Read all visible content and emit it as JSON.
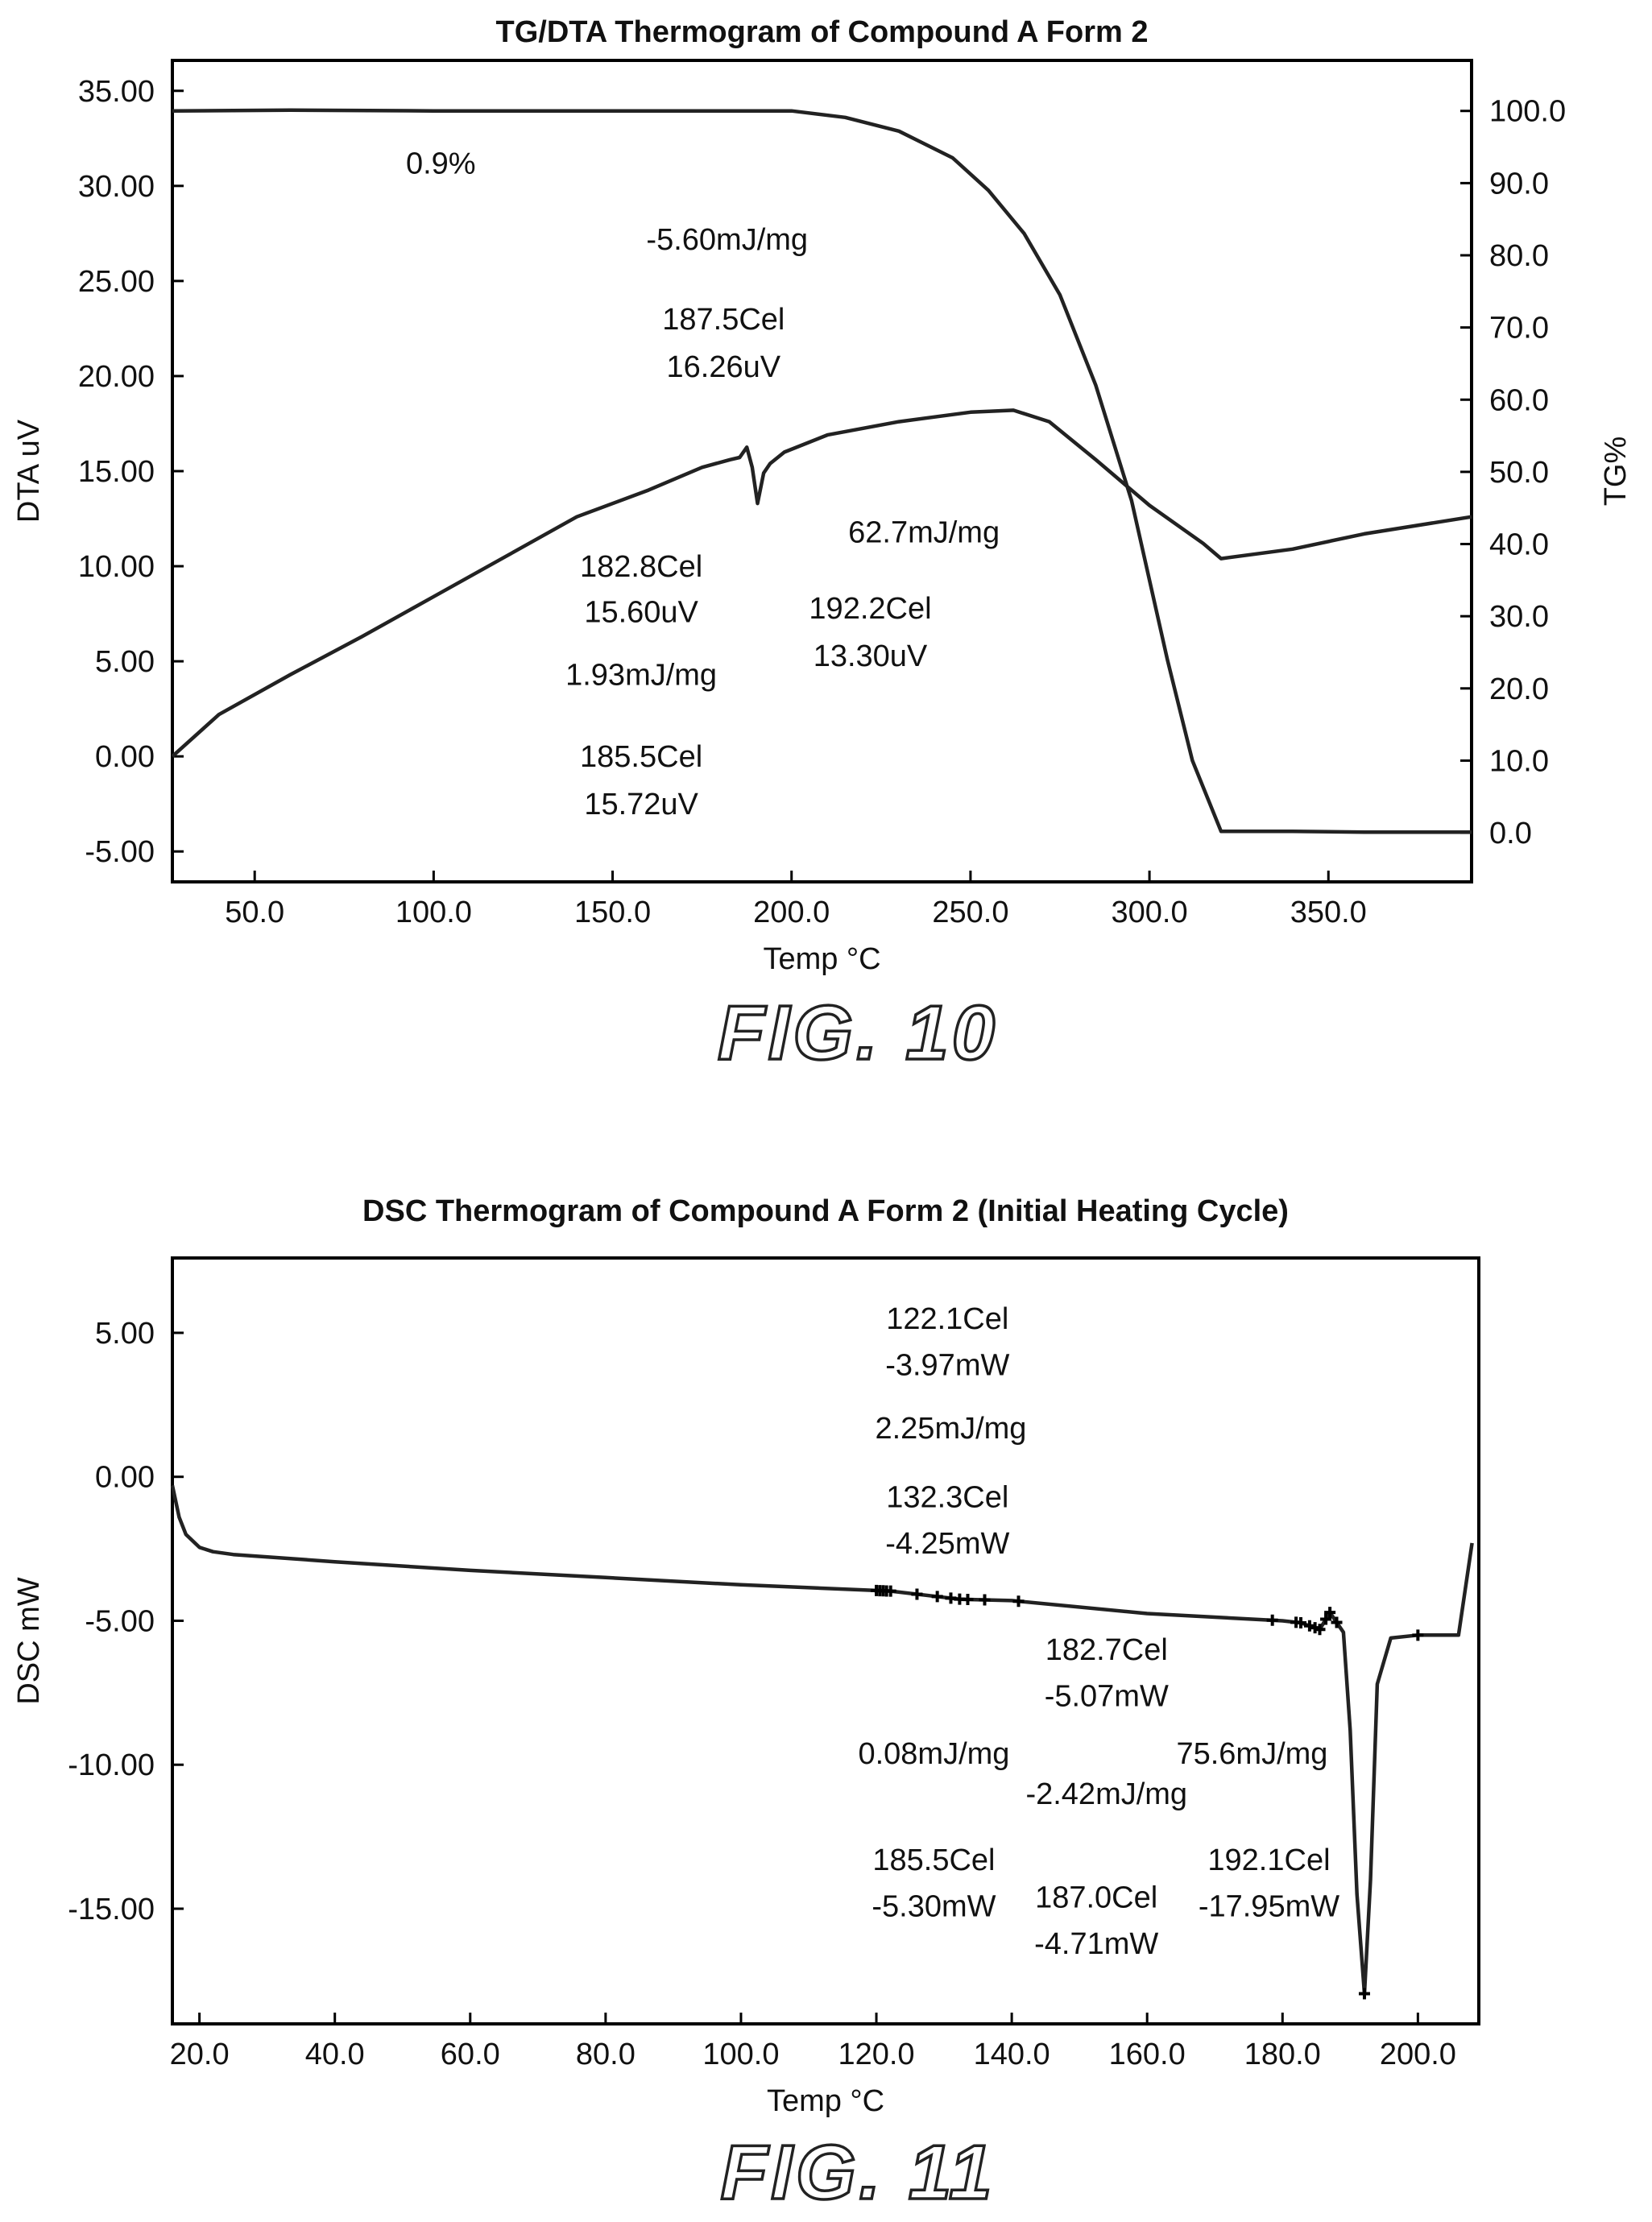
{
  "chart_data": [
    {
      "type": "line",
      "title": "TG/DTA Thermogram of Compound A Form 2",
      "xlabel": "Temp °C",
      "ylabel": "DTA uV",
      "y2label": "TG%",
      "figure_label": "FIG. 10",
      "xlim": [
        27,
        390
      ],
      "ylim": [
        -6.6,
        36.6
      ],
      "y2lim": [
        -6.8,
        107.0
      ],
      "x_ticks": [
        "50.0",
        "100.0",
        "150.0",
        "200.0",
        "250.0",
        "300.0",
        "350.0"
      ],
      "y_ticks": [
        "35.00",
        "30.00",
        "25.00",
        "20.00",
        "15.00",
        "10.00",
        "5.00",
        "0.00",
        "-5.00"
      ],
      "y2_ticks": [
        "100.0",
        "90.0",
        "80.0",
        "70.0",
        "60.0",
        "50.0",
        "40.0",
        "30.0",
        "20.0",
        "10.0",
        "0.0"
      ],
      "grid": false,
      "series": [
        {
          "axis": "left",
          "x": [
            27,
            40,
            60,
            80,
            100,
            120,
            140,
            160,
            175,
            182.8,
            185.5,
            187.5,
            189,
            190.5,
            192.2,
            194,
            198,
            210,
            230,
            250,
            262,
            272,
            285,
            300,
            315,
            320,
            340,
            360,
            390
          ],
          "y": [
            0.0,
            2.2,
            4.3,
            6.3,
            8.4,
            10.5,
            12.6,
            14.0,
            15.2,
            15.6,
            15.72,
            16.26,
            15.2,
            13.3,
            14.9,
            15.4,
            16.0,
            16.9,
            17.6,
            18.1,
            18.2,
            17.6,
            15.6,
            13.2,
            11.2,
            10.4,
            10.9,
            11.7,
            12.6
          ]
        },
        {
          "axis": "right",
          "x": [
            27,
            60,
            100,
            150,
            200,
            215,
            230,
            245,
            255,
            265,
            275,
            285,
            295,
            305,
            312,
            320,
            340,
            360,
            390
          ],
          "y": [
            100.0,
            100.1,
            100.0,
            100.0,
            100.0,
            99.1,
            97.2,
            93.5,
            89.0,
            83.0,
            74.5,
            62.0,
            46.0,
            24.0,
            10.0,
            0.2,
            0.2,
            0.1,
            0.1
          ]
        }
      ],
      "annotations": [
        {
          "text": "0.9%",
          "x": 102,
          "y": 31.2
        },
        {
          "text": "-5.60mJ/mg",
          "x": 182,
          "y": 27.2
        },
        {
          "text": "187.5Cel",
          "x": 181,
          "y": 23.0
        },
        {
          "text": "16.26uV",
          "x": 181,
          "y": 20.5
        },
        {
          "text": "62.7mJ/mg",
          "x": 237,
          "y": 11.8
        },
        {
          "text": "182.8Cel",
          "x": 158,
          "y": 10.0
        },
        {
          "text": "15.60uV",
          "x": 158,
          "y": 7.6
        },
        {
          "text": "192.2Cel",
          "x": 222,
          "y": 7.8
        },
        {
          "text": "13.30uV",
          "x": 222,
          "y": 5.3
        },
        {
          "text": "1.93mJ/mg",
          "x": 158,
          "y": 4.3
        },
        {
          "text": "185.5Cel",
          "x": 158,
          "y": 0.0
        },
        {
          "text": "15.72uV",
          "x": 158,
          "y": -2.5
        }
      ]
    },
    {
      "type": "line",
      "title": "DSC Thermogram of Compound A Form 2 (Initial Heating Cycle)",
      "xlabel": "Temp °C",
      "ylabel": "DSC mW",
      "figure_label": "FIG. 11",
      "xlim": [
        16,
        209
      ],
      "ylim": [
        -19,
        7.6
      ],
      "x_ticks": [
        "20.0",
        "40.0",
        "60.0",
        "80.0",
        "100.0",
        "120.0",
        "140.0",
        "160.0",
        "180.0",
        "200.0"
      ],
      "y_ticks": [
        "5.00",
        "0.00",
        "-5.00",
        "-10.00",
        "-15.00"
      ],
      "grid": false,
      "series": [
        {
          "axis": "left",
          "x": [
            16,
            17,
            18,
            20,
            22,
            25,
            40,
            60,
            80,
            100,
            120,
            122.1,
            132.3,
            140,
            160,
            180,
            182.7,
            185.5,
            187.0,
            189,
            190,
            191,
            192.1,
            193,
            194,
            196,
            200,
            204,
            206,
            208
          ],
          "y": [
            -0.3,
            -1.4,
            -2.0,
            -2.45,
            -2.6,
            -2.7,
            -2.95,
            -3.25,
            -3.5,
            -3.75,
            -3.95,
            -3.97,
            -4.25,
            -4.3,
            -4.75,
            -5.0,
            -5.07,
            -5.3,
            -4.71,
            -5.4,
            -8.8,
            -14.5,
            -17.95,
            -14.0,
            -7.2,
            -5.6,
            -5.5,
            -5.5,
            -5.5,
            -2.3
          ]
        }
      ],
      "annotations": [
        {
          "text": "122.1Cel",
          "x": 130.5,
          "y": 5.5
        },
        {
          "text": "-3.97mW",
          "x": 130.5,
          "y": 3.9
        },
        {
          "text": "2.25mJ/mg",
          "x": 131.0,
          "y": 1.7
        },
        {
          "text": "132.3Cel",
          "x": 130.5,
          "y": -0.7
        },
        {
          "text": "-4.25mW",
          "x": 130.5,
          "y": -2.3
        },
        {
          "text": "182.7Cel",
          "x": 154.0,
          "y": -6.0
        },
        {
          "text": "-5.07mW",
          "x": 154.0,
          "y": -7.6
        },
        {
          "text": "0.08mJ/mg",
          "x": 128.5,
          "y": -9.6
        },
        {
          "text": "75.6mJ/mg",
          "x": 175.5,
          "y": -9.6
        },
        {
          "text": "-2.42mJ/mg",
          "x": 154.0,
          "y": -11.0
        },
        {
          "text": "185.5Cel",
          "x": 128.5,
          "y": -13.3
        },
        {
          "text": "-5.30mW",
          "x": 128.5,
          "y": -14.9
        },
        {
          "text": "187.0Cel",
          "x": 152.5,
          "y": -14.6
        },
        {
          "text": "-4.71mW",
          "x": 152.5,
          "y": -16.2
        },
        {
          "text": "192.1Cel",
          "x": 178.0,
          "y": -13.3
        },
        {
          "text": "-17.95mW",
          "x": 178.0,
          "y": -14.9
        }
      ],
      "markers_x": [
        120.0,
        120.5,
        121.0,
        121.5,
        122.1,
        126.0,
        129.0,
        131.0,
        132.3,
        133.5,
        136.0,
        141.0,
        178.5,
        182.0,
        182.7,
        184.0,
        184.8,
        185.5,
        186.4,
        187.0,
        188.0,
        192.1,
        200.0
      ]
    }
  ]
}
